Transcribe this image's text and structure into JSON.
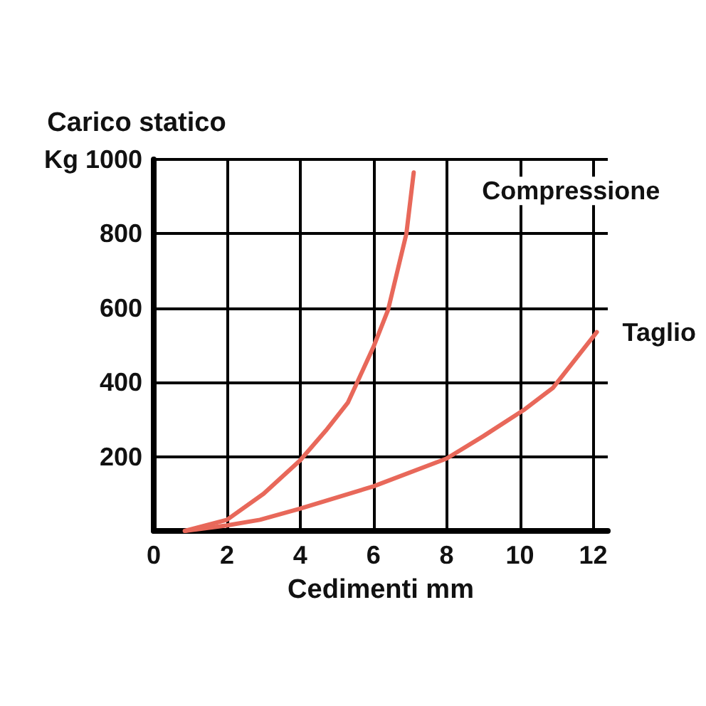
{
  "chart_data": {
    "type": "line",
    "xlabel": "Cedimenti mm",
    "ylabel": "Carico statico",
    "xlim": [
      0,
      12.4
    ],
    "xticks": [
      0,
      2,
      4,
      6,
      8,
      10,
      12
    ],
    "ylim": [
      0,
      1000
    ],
    "yticks": [
      {
        "value": 0,
        "label": null
      },
      200,
      400,
      600,
      800,
      {
        "value": 1000,
        "label": "Kg 1000"
      }
    ],
    "grid": true,
    "legend": false,
    "marker": "none",
    "line_style": "solid",
    "series": [
      {
        "name": "Compressione",
        "color": "#e8685a",
        "x": [
          0.85,
          2,
          3,
          4,
          4.7,
          5.3,
          6,
          6.4,
          6.9,
          7.1
        ],
        "values": [
          0,
          30,
          100,
          190,
          270,
          345,
          495,
          595,
          800,
          965
        ]
      },
      {
        "name": "Taglio",
        "color": "#e8685a",
        "x": [
          0.85,
          2,
          2.9,
          4,
          6,
          8,
          9,
          10.1,
          10.9,
          12.1
        ],
        "values": [
          0,
          15,
          30,
          60,
          120,
          195,
          255,
          325,
          385,
          535
        ]
      }
    ]
  }
}
